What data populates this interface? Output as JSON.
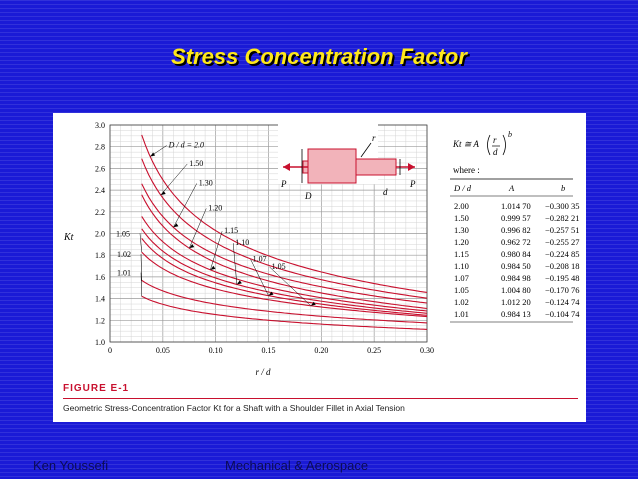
{
  "slide": {
    "title": "Stress Concentration Factor",
    "footer_left": "Ken Youssefi",
    "footer_center": "Mechanical & Aerospace"
  },
  "figure": {
    "label": "FIGURE E-1",
    "caption": "Geometric Stress-Concentration Factor Kt for a Shaft with a Shoulder Fillet in Axial Tension",
    "diagram_labels": {
      "P_left": "P",
      "P_right": "P",
      "D": "D",
      "d": "d",
      "r": "r"
    },
    "formula": {
      "lhs": "Kt ≅ A",
      "r": "r",
      "d": "d",
      "exponent": "b",
      "where": "where :"
    },
    "curve_color": "#c8102e"
  },
  "coef_table": {
    "headers": [
      "D / d",
      "A",
      "b"
    ],
    "rows": [
      [
        "2.00",
        "1.014 70",
        "−0.300 35"
      ],
      [
        "1.50",
        "0.999 57",
        "−0.282 21"
      ],
      [
        "1.30",
        "0.996 82",
        "−0.257 51"
      ],
      [
        "1.20",
        "0.962 72",
        "−0.255 27"
      ],
      [
        "1.15",
        "0.980 84",
        "−0.224 85"
      ],
      [
        "1.10",
        "0.984 50",
        "−0.208 18"
      ],
      [
        "1.07",
        "0.984 98",
        "−0.195 48"
      ],
      [
        "1.05",
        "1.004 80",
        "−0.170 76"
      ],
      [
        "1.02",
        "1.012 20",
        "−0.124 74"
      ],
      [
        "1.01",
        "0.984 13",
        "−0.104 74"
      ]
    ]
  },
  "chart_data": {
    "type": "line",
    "xlabel": "r / d",
    "ylabel": "Kt",
    "xlim": [
      0,
      0.3
    ],
    "ylim": [
      1.0,
      3.0
    ],
    "x_ticks": [
      "0",
      "0.05",
      "0.10",
      "0.15",
      "0.20",
      "0.25",
      "0.30"
    ],
    "y_ticks": [
      "1.0",
      "1.2",
      "1.4",
      "1.6",
      "1.8",
      "2.0",
      "2.2",
      "2.4",
      "2.6",
      "2.8",
      "3.0"
    ],
    "grid": true,
    "x_range_plotted": [
      0.03,
      0.3
    ],
    "series": [
      {
        "name": "D / d = 2.0",
        "A": 1.0147,
        "b": -0.30035
      },
      {
        "name": "1.50",
        "A": 0.99957,
        "b": -0.28221
      },
      {
        "name": "1.30",
        "A": 0.99682,
        "b": -0.25751
      },
      {
        "name": "1.20",
        "A": 0.96272,
        "b": -0.25527
      },
      {
        "name": "1.15",
        "A": 0.98084,
        "b": -0.22485
      },
      {
        "name": "1.10",
        "A": 0.9845,
        "b": -0.20818
      },
      {
        "name": "1.07",
        "A": 0.98498,
        "b": -0.19548
      },
      {
        "name": "1.05",
        "A": 1.0048,
        "b": -0.17076
      },
      {
        "name": "1.02",
        "A": 1.0122,
        "b": -0.12474
      },
      {
        "name": "1.01",
        "A": 0.98413,
        "b": -0.10474
      }
    ]
  }
}
